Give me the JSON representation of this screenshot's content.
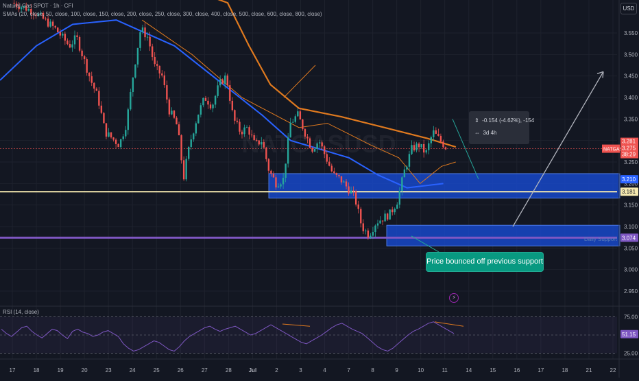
{
  "header": {
    "symbol_line": "Natural Gas SPOT · 1h · CFI",
    "indicator_line": "SMAs (20, close, 50, close, 100, close, 150, close, 200, close, 250, close, 300, close, 400, close, 500, close, 600, close, 800, close)",
    "currency": "USD",
    "watermark": "NATGASUSD"
  },
  "measure_tooltip": {
    "price_change": "-0.154 (-4.62%), -154",
    "duration": "3d 4h"
  },
  "annotation": {
    "callout_text": "Price bounced off previous support",
    "daily_support_label": "Daily Support"
  },
  "price_tags": {
    "symbol_tag": "NATGAS",
    "last": "3.281",
    "last_secondary": "3.275",
    "countdown": "38:29",
    "support_upper": "3.210",
    "yellow_line": "3.181",
    "purple_line": "3.074",
    "rsi_value": "51.15"
  },
  "rsi_label": "RSI (14, close)",
  "colors": {
    "background": "#131722",
    "candle_up": "#26a69a",
    "candle_down": "#ef5350",
    "sma_orange": "#e07a1f",
    "sma_blue": "#2962ff",
    "zone_blue": "#1848c8",
    "yellow_line": "#f5e9b0",
    "purple_line": "#7e57c2",
    "callout": "#089981",
    "rsi_line": "#7e57c2"
  },
  "chart_data": {
    "type": "candlestick",
    "y_axis": {
      "range": [
        2.9,
        3.6
      ],
      "ticks": [
        "3.550",
        "3.500",
        "3.450",
        "3.400",
        "3.350",
        "3.300",
        "3.250",
        "3.200",
        "3.150",
        "3.100",
        "3.050",
        "3.000",
        "2.950"
      ]
    },
    "x_axis": {
      "ticks": [
        "17",
        "18",
        "19",
        "20",
        "23",
        "24",
        "25",
        "26",
        "27",
        "28",
        "Jul",
        "2",
        "3",
        "4",
        "7",
        "8",
        "9",
        "10",
        "11",
        "14",
        "15",
        "16",
        "17",
        "18",
        "21",
        "22"
      ]
    },
    "price_path": [
      [
        0,
        3.62
      ],
      [
        3,
        3.6
      ],
      [
        6,
        3.56
      ],
      [
        8,
        3.52
      ],
      [
        9,
        3.54
      ],
      [
        11,
        3.44
      ],
      [
        12,
        3.4
      ],
      [
        13,
        3.32
      ],
      [
        15,
        3.29
      ],
      [
        16,
        3.34
      ],
      [
        17,
        3.46
      ],
      [
        18,
        3.56
      ],
      [
        19,
        3.54
      ],
      [
        20,
        3.47
      ],
      [
        21,
        3.45
      ],
      [
        22,
        3.37
      ],
      [
        23,
        3.34
      ],
      [
        23.5,
        3.29
      ],
      [
        24,
        3.21
      ],
      [
        24.5,
        3.26
      ],
      [
        25,
        3.3
      ],
      [
        26,
        3.36
      ],
      [
        27,
        3.4
      ],
      [
        28,
        3.38
      ],
      [
        29,
        3.43
      ],
      [
        30,
        3.45
      ],
      [
        31,
        3.35
      ],
      [
        32,
        3.32
      ],
      [
        33,
        3.33
      ],
      [
        34,
        3.29
      ],
      [
        35,
        3.3
      ],
      [
        36,
        3.23
      ],
      [
        37,
        3.2
      ],
      [
        38,
        3.21
      ],
      [
        39,
        3.34
      ],
      [
        40,
        3.36
      ],
      [
        41,
        3.32
      ],
      [
        42,
        3.28
      ],
      [
        43,
        3.3
      ],
      [
        44,
        3.26
      ],
      [
        45,
        3.22
      ],
      [
        46,
        3.21
      ],
      [
        47,
        3.19
      ],
      [
        48,
        3.17
      ],
      [
        49,
        3.1
      ],
      [
        50,
        3.08
      ],
      [
        51,
        3.11
      ],
      [
        52,
        3.12
      ],
      [
        53,
        3.13
      ],
      [
        54,
        3.16
      ],
      [
        55,
        3.23
      ],
      [
        56,
        3.28
      ],
      [
        57,
        3.29
      ],
      [
        58,
        3.27
      ],
      [
        59,
        3.32
      ],
      [
        60,
        3.3
      ],
      [
        61,
        3.28
      ]
    ],
    "rsi": {
      "name": "RSI (14, close)",
      "last": 51.15,
      "range": [
        20,
        80
      ],
      "ticks": [
        "75.00",
        "50.00",
        "25.00"
      ],
      "values": [
        58,
        52,
        48,
        54,
        60,
        62,
        55,
        50,
        46,
        52,
        58,
        56,
        50,
        45,
        55,
        58,
        54,
        52,
        48,
        50,
        54,
        56,
        52,
        48,
        38,
        32,
        28,
        30,
        34,
        38,
        42,
        40,
        35,
        30,
        28,
        34,
        42,
        48,
        52,
        56,
        60,
        62,
        58,
        55,
        58,
        60,
        62,
        58,
        54,
        50,
        52,
        56,
        60,
        64,
        60,
        56,
        52,
        48,
        44,
        40,
        38,
        42,
        46,
        50,
        55,
        60,
        64,
        66,
        62,
        58,
        55,
        52,
        46,
        40,
        34,
        30,
        28,
        32,
        38,
        44,
        50,
        55,
        58,
        62,
        66,
        68,
        64,
        60,
        56,
        52
      ]
    }
  }
}
